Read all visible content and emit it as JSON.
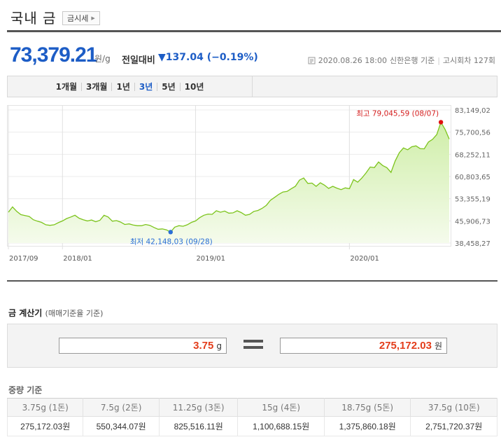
{
  "header": {
    "title": "국내 금",
    "gold_price_button": "금시세"
  },
  "price": {
    "value": "73,379.21",
    "unit": "원/g",
    "change_label": "전일대비",
    "change_arrow": "▼",
    "change_value": "137.04",
    "change_percent": "(−0.19%)",
    "timestamp": "2020.08.26 18:00",
    "source": "신한은행 기준",
    "round": "고시회차 127회"
  },
  "periods": [
    {
      "label": "1개월",
      "active": false
    },
    {
      "label": "3개월",
      "active": false
    },
    {
      "label": "1년",
      "active": false
    },
    {
      "label": "3년",
      "active": true
    },
    {
      "label": "5년",
      "active": false
    },
    {
      "label": "10년",
      "active": false
    }
  ],
  "chart_data": {
    "type": "area",
    "y_ticks": [
      "83,149,02",
      "75,700,56",
      "68,252,11",
      "60,803,65",
      "53,355,19",
      "45,906,73",
      "38,458,27"
    ],
    "ylim": [
      38458.27,
      83149.02
    ],
    "x_ticks": [
      "2017/09",
      "2018/01",
      "2019/01",
      "2020/01"
    ],
    "max_label": "최고 79,045,59 (08/07)",
    "min_label": "최저 42,148,03 (09/28)",
    "max_value": 79045.59,
    "min_value": 42148.03,
    "colors": {
      "line": "#7cc41c",
      "fill_top": "#cfeea8",
      "fill_bottom": "#f5fbec",
      "max_dot": "#e01010",
      "min_dot": "#2a6fd6",
      "max_text": "#d51f1f",
      "min_text": "#2a6fd6"
    },
    "series": [
      {
        "values": [
          48800,
          50600,
          49100,
          48000,
          47700,
          47400,
          46300,
          45800,
          45400,
          44600,
          44400,
          44600,
          45300,
          45900,
          46700,
          47200,
          47800,
          46800,
          46300,
          45900,
          46200,
          45600,
          46100,
          47800,
          47200,
          45800,
          46000,
          45500,
          44700,
          44900,
          44500,
          44300,
          44300,
          44700,
          44400,
          43700,
          43100,
          43200,
          42900,
          42148,
          43800,
          44300,
          44100,
          44600,
          45400,
          45900,
          47000,
          47800,
          48200,
          48100,
          49300,
          48800,
          49200,
          48500,
          48600,
          49300,
          48700,
          47800,
          48100,
          49100,
          49400,
          50100,
          51100,
          52800,
          53800,
          54800,
          55600,
          55800,
          56700,
          57500,
          59600,
          60300,
          58500,
          58600,
          57500,
          58700,
          57900,
          56800,
          57500,
          56900,
          56400,
          57000,
          56700,
          59800,
          58900,
          60300,
          62000,
          64000,
          63800,
          65700,
          64500,
          63800,
          62200,
          66000,
          68800,
          70400,
          69800,
          70800,
          71100,
          70200,
          70100,
          72400,
          73300,
          74900,
          79045,
          76600,
          73379
        ]
      }
    ]
  },
  "calculator": {
    "title": "금 계산기",
    "subtitle": "(매매기준율 기준)",
    "weight_value": "3.75",
    "weight_unit": "g",
    "result_value": "275,172.03",
    "result_unit": "원"
  },
  "weight_table": {
    "title": "중량 기준",
    "headers": [
      "3.75g (1돈)",
      "7.5g (2돈)",
      "11.25g (3돈)",
      "15g (4돈)",
      "18.75g (5돈)",
      "37.5g (10돈)"
    ],
    "values": [
      "275,172.03원",
      "550,344.07원",
      "825,516.11원",
      "1,100,688.15원",
      "1,375,860.18원",
      "2,751,720.37원"
    ]
  }
}
